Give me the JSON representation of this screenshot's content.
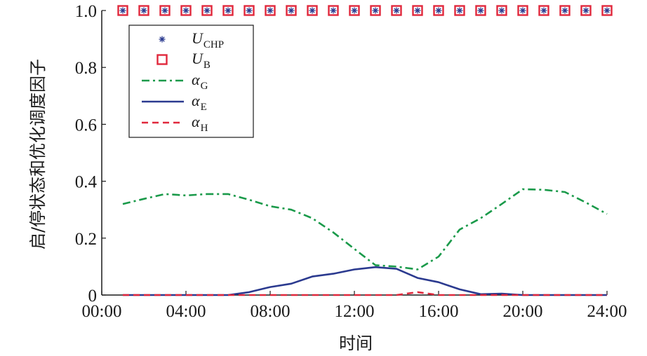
{
  "chart_data": {
    "type": "line",
    "xlabel": "时间",
    "ylabel": "启/停状态和优化调度因子",
    "xlim": [
      0,
      24
    ],
    "ylim": [
      0,
      1
    ],
    "x_ticks": [
      0,
      4,
      8,
      12,
      16,
      20,
      24
    ],
    "x_tick_labels": [
      "00:00",
      "04:00",
      "08:00",
      "12:00",
      "16:00",
      "20:00",
      "24:00"
    ],
    "y_ticks": [
      0,
      0.2,
      0.4,
      0.6,
      0.8,
      1.0
    ],
    "y_tick_labels": [
      "0",
      "0.2",
      "0.4",
      "0.6",
      "0.8",
      "1.0"
    ],
    "grid": false,
    "legend_position": "top-left",
    "x": [
      1,
      2,
      3,
      4,
      5,
      6,
      7,
      8,
      9,
      10,
      11,
      12,
      13,
      14,
      15,
      16,
      17,
      18,
      19,
      20,
      21,
      22,
      23,
      24
    ],
    "series": [
      {
        "name": "U",
        "subscript": "CHP",
        "style": "marker-star",
        "color": "#2b3a8f",
        "values": [
          1,
          1,
          1,
          1,
          1,
          1,
          1,
          1,
          1,
          1,
          1,
          1,
          1,
          1,
          1,
          1,
          1,
          1,
          1,
          1,
          1,
          1,
          1,
          1
        ]
      },
      {
        "name": "U",
        "subscript": "B",
        "style": "marker-square",
        "color": "#e0283c",
        "values": [
          1,
          1,
          1,
          1,
          1,
          1,
          1,
          1,
          1,
          1,
          1,
          1,
          1,
          1,
          1,
          1,
          1,
          1,
          1,
          1,
          1,
          1,
          1,
          1
        ]
      },
      {
        "name": "α",
        "subscript": "G",
        "style": "dashdot",
        "color": "#1a9a4a",
        "values": [
          0.32,
          0.338,
          0.355,
          0.35,
          0.355,
          0.355,
          0.335,
          0.312,
          0.3,
          0.27,
          0.22,
          0.162,
          0.105,
          0.1,
          0.09,
          0.135,
          0.23,
          0.27,
          0.32,
          0.372,
          0.37,
          0.362,
          0.325,
          0.285
        ]
      },
      {
        "name": "α",
        "subscript": "E",
        "style": "solid",
        "color": "#2b3a8f",
        "values": [
          0,
          0,
          0,
          0,
          0,
          0,
          0.01,
          0.028,
          0.04,
          0.065,
          0.075,
          0.09,
          0.098,
          0.092,
          0.06,
          0.045,
          0.02,
          0.003,
          0.005,
          0,
          0,
          0,
          0,
          0
        ]
      },
      {
        "name": "α",
        "subscript": "H",
        "style": "dashed",
        "color": "#e0283c",
        "values": [
          0,
          0,
          0,
          0,
          0,
          0,
          0,
          0,
          0,
          0,
          0,
          0,
          0,
          0,
          0.01,
          0,
          0,
          0,
          0,
          0,
          0,
          0,
          0,
          0
        ]
      }
    ]
  }
}
